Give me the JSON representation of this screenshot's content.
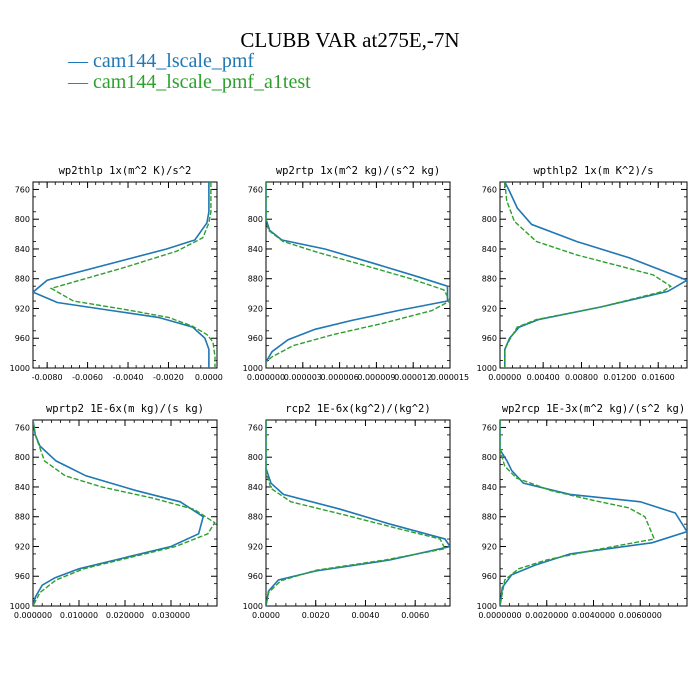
{
  "figure": {
    "title": "CLUBB VAR at275E,-7N",
    "legend": [
      {
        "label": "— cam144_lscale_pmf",
        "color": "#1f77b4"
      },
      {
        "label": "— cam144_lscale_pmf_a1test",
        "color": "#2ca02c"
      }
    ]
  },
  "chart_data": [
    {
      "type": "line",
      "title": "wp2thlp   1x(m^2 K)/s^2",
      "xlim": [
        -0.0087,
        0.0004
      ],
      "ylim": [
        1000,
        750
      ],
      "y_ticks": [
        760,
        800,
        840,
        880,
        920,
        960,
        1000
      ],
      "x_ticks": [
        -0.008,
        -0.006,
        -0.004,
        -0.002,
        0.0
      ],
      "x_tick_labels": [
        "-0.0080",
        "-0.0060",
        "-0.0040",
        "-0.0020",
        "0.0000"
      ],
      "series": [
        {
          "color": "#1f77b4",
          "dashed": false,
          "x": [
            0.0,
            0.0,
            -0.0001,
            -0.0007,
            -0.0021,
            -0.008,
            -0.0087,
            -0.0075,
            -0.005,
            -0.0025,
            -0.0008,
            -0.0002,
            0.0,
            0.0,
            0.0
          ],
          "y": [
            750,
            790,
            805,
            828,
            840,
            882,
            898,
            912,
            922,
            932,
            945,
            960,
            975,
            990,
            1000
          ]
        },
        {
          "color": "#2ca02c",
          "dashed": true,
          "x": [
            0.0001,
            0.0001,
            0.0,
            -0.0003,
            -0.0016,
            -0.0042,
            -0.0078,
            -0.0067,
            -0.004,
            -0.002,
            -0.0008,
            -0.0001,
            0.0002,
            0.0003,
            0.0003
          ],
          "y": [
            750,
            790,
            805,
            825,
            843,
            865,
            893,
            910,
            922,
            932,
            944,
            955,
            965,
            985,
            1000
          ]
        }
      ]
    },
    {
      "type": "line",
      "title": "wp2rtp   1x(m^2 kg)/(s^2 kg)",
      "xlim": [
        0.0,
        1.5e-05
      ],
      "ylim": [
        1000,
        750
      ],
      "y_ticks": [
        760,
        800,
        840,
        880,
        920,
        960,
        1000
      ],
      "x_ticks": [
        0.0,
        3e-06,
        6e-06,
        9e-06,
        1.2e-05,
        1.5e-05
      ],
      "x_tick_labels": [
        "0.000000",
        "0.000003",
        "0.000006",
        "0.000009",
        "0.000012",
        "0.000015"
      ],
      "series": [
        {
          "color": "#1f77b4",
          "dashed": false,
          "x": [
            0.0,
            0.0,
            3e-07,
            1.3e-06,
            4.8e-06,
            8.9e-06,
            1.25e-05,
            1.48e-05,
            1.48e-05,
            1.1e-05,
            7e-06,
            4e-06,
            1.8e-06,
            5e-07,
            0.0
          ],
          "y": [
            750,
            800,
            815,
            828,
            840,
            860,
            878,
            890,
            910,
            922,
            936,
            948,
            962,
            978,
            992
          ]
        },
        {
          "color": "#2ca02c",
          "dashed": true,
          "x": [
            0.0,
            0.0,
            2e-07,
            1.4e-06,
            4.3e-06,
            8e-06,
            1.18e-05,
            1.45e-05,
            1.5e-05,
            1.35e-05,
            9.5e-06,
            5.5e-06,
            2.2e-06,
            5e-07,
            0.0
          ],
          "y": [
            750,
            800,
            815,
            830,
            845,
            862,
            880,
            895,
            910,
            923,
            940,
            955,
            970,
            985,
            992
          ]
        }
      ]
    },
    {
      "type": "line",
      "title": "wpthlp2   1x(m K^2)/s",
      "xlim": [
        -0.0005,
        0.019
      ],
      "ylim": [
        1000,
        750
      ],
      "y_ticks": [
        760,
        800,
        840,
        880,
        920,
        960,
        1000
      ],
      "x_ticks": [
        0.0,
        0.004,
        0.008,
        0.012,
        0.016
      ],
      "x_tick_labels": [
        "0.00000",
        "0.00400",
        "0.00800",
        "0.01200",
        "0.01600"
      ],
      "series": [
        {
          "color": "#1f77b4",
          "dashed": false,
          "x": [
            0.0,
            0.0004,
            0.0013,
            0.0028,
            0.0075,
            0.013,
            0.017,
            0.019,
            0.017,
            0.01,
            0.0035,
            0.0015,
            0.0005,
            0.0,
            0.0
          ],
          "y": [
            750,
            760,
            785,
            807,
            830,
            852,
            872,
            882,
            897,
            918,
            935,
            945,
            960,
            975,
            1000
          ]
        },
        {
          "color": "#2ca02c",
          "dashed": true,
          "x": [
            0.0,
            0.0002,
            0.001,
            0.0033,
            0.0075,
            0.012,
            0.0155,
            0.0173,
            0.0165,
            0.01,
            0.0033,
            0.0013,
            0.0005,
            0.0,
            0.0
          ],
          "y": [
            750,
            775,
            803,
            830,
            848,
            863,
            875,
            890,
            897,
            918,
            935,
            945,
            962,
            975,
            1000
          ]
        }
      ]
    },
    {
      "type": "line",
      "title": "wprtp2   1E-6x(m kg)/(s kg)",
      "xlim": [
        0.0,
        0.04
      ],
      "ylim": [
        1000,
        750
      ],
      "y_ticks": [
        760,
        800,
        840,
        880,
        920,
        960,
        1000
      ],
      "x_ticks": [
        0.0,
        0.01,
        0.02,
        0.03
      ],
      "x_tick_labels": [
        "0.000000",
        "0.010000",
        "0.020000",
        "0.030000"
      ],
      "series": [
        {
          "color": "#1f77b4",
          "dashed": false,
          "x": [
            0.0,
            0.0005,
            0.0015,
            0.005,
            0.0115,
            0.0225,
            0.032,
            0.037,
            0.036,
            0.03,
            0.02,
            0.01,
            0.0048,
            0.002,
            0.0005,
            0.0
          ],
          "y": [
            750,
            770,
            785,
            805,
            825,
            845,
            860,
            880,
            903,
            920,
            935,
            950,
            962,
            972,
            988,
            1000
          ]
        },
        {
          "color": "#2ca02c",
          "dashed": true,
          "x": [
            0.0,
            0.0005,
            0.0025,
            0.007,
            0.015,
            0.026,
            0.035,
            0.0395,
            0.038,
            0.031,
            0.021,
            0.011,
            0.005,
            0.0015,
            0.0
          ],
          "y": [
            750,
            770,
            805,
            825,
            840,
            855,
            870,
            888,
            903,
            920,
            935,
            950,
            965,
            982,
            1000
          ]
        }
      ]
    },
    {
      "type": "line",
      "title": "rcp2   1E-6x(kg^2)/(kg^2)",
      "xlim": [
        0.0,
        0.0074
      ],
      "ylim": [
        1000,
        750
      ],
      "y_ticks": [
        760,
        800,
        840,
        880,
        920,
        960,
        1000
      ],
      "x_ticks": [
        0.0,
        0.002,
        0.004,
        0.006
      ],
      "x_tick_labels": [
        "0.0000",
        "0.0020",
        "0.0040",
        "0.0060"
      ],
      "series": [
        {
          "color": "#1f77b4",
          "dashed": false,
          "x": [
            0.0,
            0.0,
            0.0002,
            0.0007,
            0.003,
            0.005,
            0.0072,
            0.0074,
            0.005,
            0.002,
            0.0005,
            0.0001,
            0.0
          ],
          "y": [
            750,
            815,
            835,
            850,
            870,
            890,
            910,
            920,
            938,
            953,
            965,
            980,
            1000
          ]
        },
        {
          "color": "#2ca02c",
          "dashed": true,
          "x": [
            0.0,
            0.0,
            0.0002,
            0.001,
            0.0032,
            0.0052,
            0.007,
            0.0072,
            0.0048,
            0.002,
            0.0006,
            0.0001,
            0.0
          ],
          "y": [
            750,
            820,
            842,
            860,
            878,
            895,
            910,
            923,
            938,
            952,
            966,
            982,
            1000
          ]
        }
      ]
    },
    {
      "type": "line",
      "title": "wp2rcp   1E-3x(m^2 kg)/(s^2 kg)",
      "xlim": [
        0.0,
        0.008
      ],
      "ylim": [
        1000,
        750
      ],
      "y_ticks": [
        760,
        800,
        840,
        880,
        920,
        960,
        1000
      ],
      "x_ticks": [
        0.0,
        0.002,
        0.004,
        0.006
      ],
      "x_tick_labels": [
        "0.0000000",
        "0.0020000",
        "0.0040000",
        "0.0060000"
      ],
      "series": [
        {
          "color": "#1f77b4",
          "dashed": false,
          "x": [
            0.0,
            0.0,
            0.0003,
            0.0005,
            0.001,
            0.003,
            0.006,
            0.0075,
            0.008,
            0.0065,
            0.003,
            0.0015,
            0.0005,
            0.0001,
            0.0
          ],
          "y": [
            750,
            790,
            805,
            818,
            835,
            850,
            860,
            875,
            900,
            915,
            930,
            945,
            958,
            975,
            1000
          ]
        },
        {
          "color": "#2ca02c",
          "dashed": true,
          "x": [
            0.0,
            0.0,
            0.0002,
            0.0007,
            0.0022,
            0.004,
            0.0055,
            0.0062,
            0.0066,
            0.004,
            0.002,
            0.0008,
            0.0002,
            0.0
          ],
          "y": [
            750,
            790,
            812,
            828,
            845,
            858,
            868,
            880,
            910,
            925,
            938,
            950,
            965,
            1000
          ]
        }
      ]
    }
  ]
}
